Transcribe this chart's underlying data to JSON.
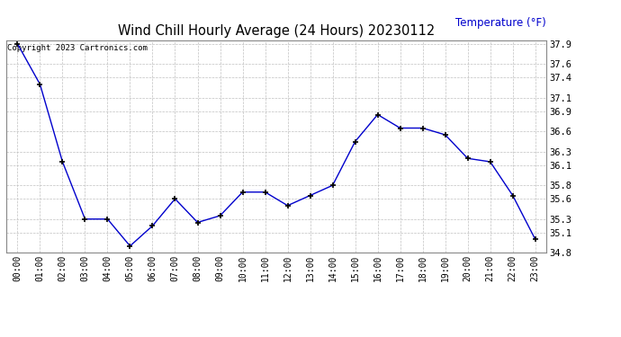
{
  "title": "Wind Chill Hourly Average (24 Hours) 20230112",
  "copyright_text": "Copyright 2023 Cartronics.com",
  "ylabel": "Temperature (°F)",
  "ylabel_color": "#0000cc",
  "line_color": "#0000cc",
  "marker_color": "#000000",
  "background_color": "#ffffff",
  "grid_color": "#c0c0c0",
  "hours": [
    "00:00",
    "01:00",
    "02:00",
    "03:00",
    "04:00",
    "05:00",
    "06:00",
    "07:00",
    "08:00",
    "09:00",
    "10:00",
    "11:00",
    "12:00",
    "13:00",
    "14:00",
    "15:00",
    "16:00",
    "17:00",
    "18:00",
    "19:00",
    "20:00",
    "21:00",
    "22:00",
    "23:00"
  ],
  "values": [
    37.9,
    37.3,
    36.15,
    35.3,
    35.3,
    34.9,
    35.2,
    35.6,
    35.25,
    35.35,
    35.7,
    35.7,
    35.5,
    35.65,
    35.8,
    36.45,
    36.85,
    36.65,
    36.65,
    36.55,
    36.2,
    36.15,
    35.65,
    35.0
  ],
  "ylim_min": 34.8,
  "ylim_max": 37.95,
  "yticks": [
    34.8,
    35.1,
    35.3,
    35.6,
    35.8,
    36.1,
    36.3,
    36.6,
    36.9,
    37.1,
    37.4,
    37.6,
    37.9
  ],
  "ytick_labels": [
    "34.8",
    "35.1",
    "35.3",
    "35.6",
    "35.8",
    "36.1",
    "36.3",
    "36.6",
    "36.9",
    "37.1",
    "37.4",
    "37.6",
    "37.9"
  ]
}
